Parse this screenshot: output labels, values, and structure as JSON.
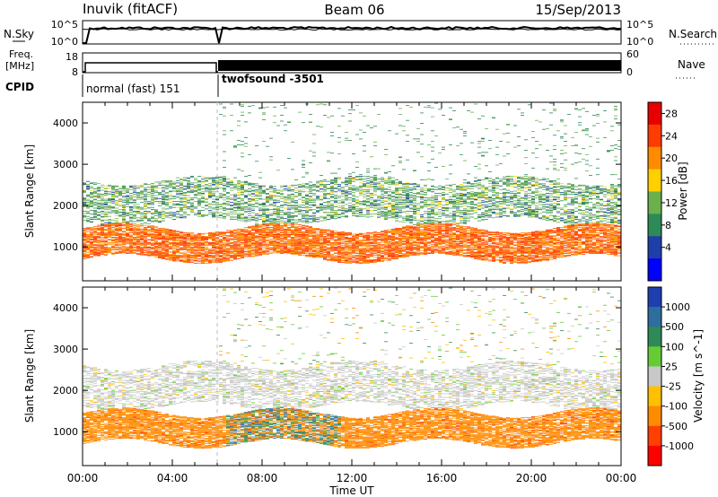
{
  "header": {
    "station": "Inuvik (fitACF)",
    "beam": "Beam 06",
    "date": "15/Sep/2013"
  },
  "panel_labels": {
    "nsky": "N.Sky",
    "nsearch": "N.Search",
    "freq_line1": "Freq.",
    "freq_line2": "[MHz]",
    "nave": "Nave",
    "cpid": "CPID"
  },
  "noise_axis": {
    "left_top": "10^5",
    "left_bottom": "10^0",
    "right_top": "10^5",
    "right_bottom": "10^0"
  },
  "freq_axis": {
    "left_top": "18",
    "left_bottom": "8",
    "right_top": "60",
    "right_bottom": "0"
  },
  "cpid_entries": [
    {
      "label": "normal (fast) 151",
      "start_hour": 0,
      "end_hour": 6
    },
    {
      "label": "twofsound -3501",
      "start_hour": 6,
      "end_hour": 24
    }
  ],
  "x_axis": {
    "label": "Time UT",
    "ticks": [
      "00:00",
      "04:00",
      "08:00",
      "12:00",
      "16:00",
      "20:00",
      "00:00"
    ],
    "range_hours": [
      0,
      24
    ]
  },
  "chart_data": [
    {
      "type": "heatmap",
      "title": "",
      "parameter": "Power",
      "colorbar_label": "Power [dB]",
      "colorbar_ticks": [
        "28",
        "24",
        "20",
        "16",
        "12",
        "8",
        "4"
      ],
      "colorbar_colors": [
        "#e80000",
        "#ff3c00",
        "#ff8c00",
        "#ffd000",
        "#6ab04c",
        "#2e8b57",
        "#1f3fa8",
        "#0000ff"
      ],
      "xlabel": "",
      "ylabel": "Slant Range [km]",
      "yticks": [
        "1000",
        "2000",
        "3000",
        "4000"
      ],
      "xlim_hours": [
        0,
        24
      ],
      "ylim_km": [
        180,
        4500
      ],
      "features": [
        {
          "name": "main echo band",
          "range_km": [
            700,
            1450
          ],
          "time_hours": [
            0,
            24
          ],
          "typical_dB": 26
        },
        {
          "name": "upper echo band",
          "range_km": [
            1600,
            2600
          ],
          "time_hours": [
            0,
            24
          ],
          "typical_dB": 10
        },
        {
          "name": "sparse far-range echoes",
          "range_km": [
            2600,
            4500
          ],
          "time_hours": [
            6,
            24
          ],
          "typical_dB": 6
        }
      ]
    },
    {
      "type": "heatmap",
      "title": "",
      "parameter": "Velocity",
      "colorbar_label": "Velocity [m s^-1]",
      "colorbar_ticks": [
        "1000",
        "500",
        "100",
        "25",
        "-25",
        "-100",
        "-500",
        "-1000"
      ],
      "colorbar_colors": [
        "#1f3fb0",
        "#2e6e9e",
        "#2e8b57",
        "#66cc33",
        "#c8c8c8",
        "#ffc000",
        "#ff8c00",
        "#ff4000",
        "#ff0000"
      ],
      "xlabel": "Time UT",
      "ylabel": "Slant Range [km]",
      "yticks": [
        "1000",
        "2000",
        "3000",
        "4000"
      ],
      "xlim_hours": [
        0,
        24
      ],
      "ylim_km": [
        180,
        4500
      ],
      "features": [
        {
          "name": "main echo band",
          "range_km": [
            700,
            1450
          ],
          "time_hours": [
            0,
            24
          ],
          "typical_velocity": -300
        },
        {
          "name": "ground scatter band",
          "range_km": [
            1600,
            2600
          ],
          "time_hours": [
            0,
            24
          ],
          "typical_velocity": 0
        },
        {
          "name": "positive velocity patch",
          "range_km": [
            600,
            1400
          ],
          "time_hours": [
            6.3,
            11.5
          ],
          "typical_velocity": 400
        }
      ]
    }
  ]
}
